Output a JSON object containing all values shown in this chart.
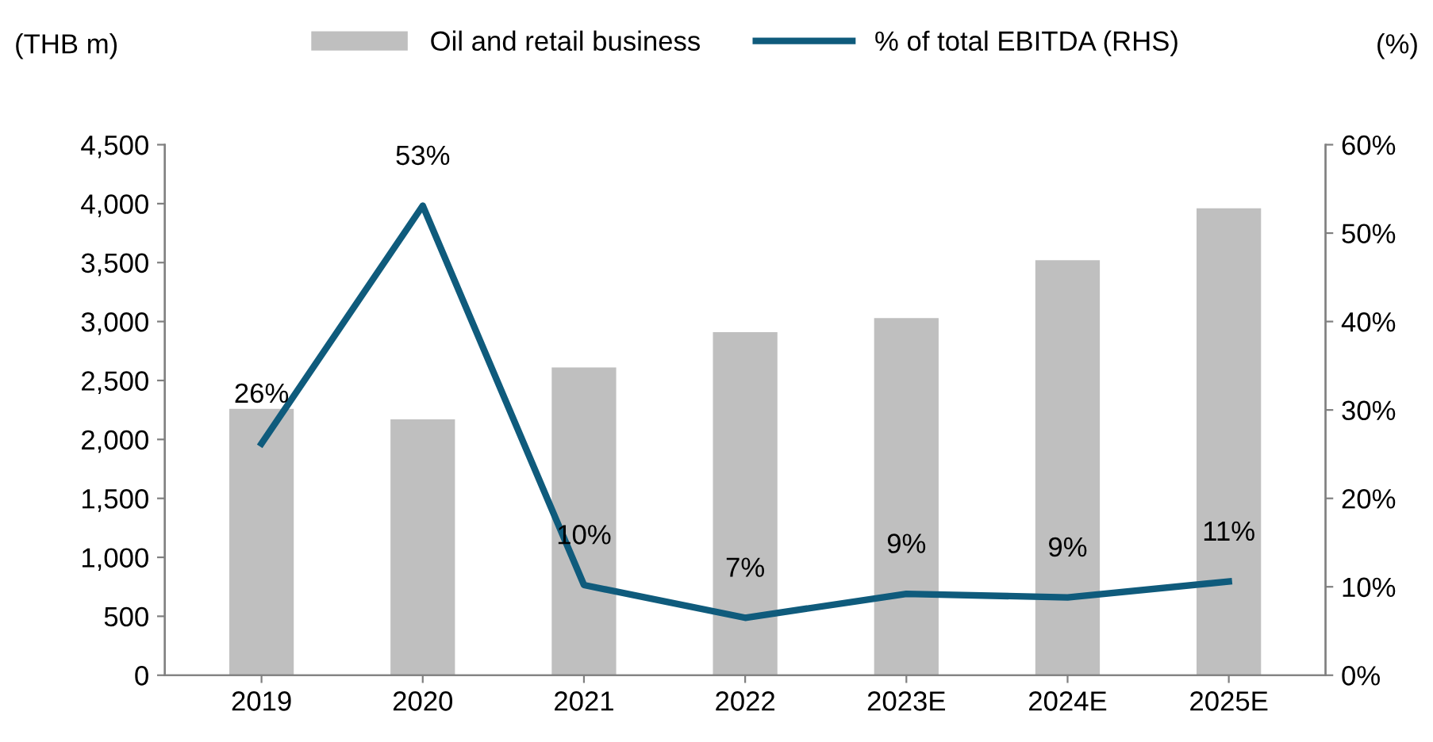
{
  "chart_data": {
    "type": "bar",
    "categories": [
      "2019",
      "2020",
      "2021",
      "2022",
      "2023E",
      "2024E",
      "2025E"
    ],
    "series": [
      {
        "name": "Oil and retail business",
        "color": "#bfbfbf",
        "values": [
          2260,
          2170,
          2610,
          2910,
          3030,
          3520,
          3960
        ]
      },
      {
        "name": "% of total EBITDA (RHS)",
        "type": "line",
        "axis": "y2",
        "color": "#0f5b7c",
        "values": [
          26.2,
          53.1,
          10.2,
          6.5,
          9.2,
          8.8,
          10.6
        ],
        "value_labels": [
          "26%",
          "53%",
          "10%",
          "7%",
          "9%",
          "9%",
          "11%"
        ]
      }
    ],
    "ylabel": "(THB m)",
    "y2label": "(%)",
    "ylim": [
      0,
      4500
    ],
    "yticks": [
      0,
      {
        "value": 500,
        "label": "500"
      },
      {
        "value": 1000,
        "label": "1,000"
      },
      {
        "value": 1500,
        "label": "1,500"
      },
      {
        "value": 2000,
        "label": "2,000"
      },
      {
        "value": 2500,
        "label": "2,500"
      },
      {
        "value": 3000,
        "label": "3,000"
      },
      {
        "value": 3500,
        "label": "3,500"
      },
      {
        "value": 4000,
        "label": "4,000"
      },
      {
        "value": 4500,
        "label": "4,500"
      }
    ],
    "y2lim": [
      0,
      60
    ],
    "y2ticks": [
      {
        "value": 0,
        "label": "0%"
      },
      {
        "value": 10,
        "label": "10%"
      },
      {
        "value": 20,
        "label": "20%"
      },
      {
        "value": 30,
        "label": "30%"
      },
      {
        "value": 40,
        "label": "40%"
      },
      {
        "value": 50,
        "label": "50%"
      },
      {
        "value": 60,
        "label": "60%"
      }
    ],
    "grid": false,
    "legend": "top",
    "marker": "none",
    "line_style": "solid"
  }
}
